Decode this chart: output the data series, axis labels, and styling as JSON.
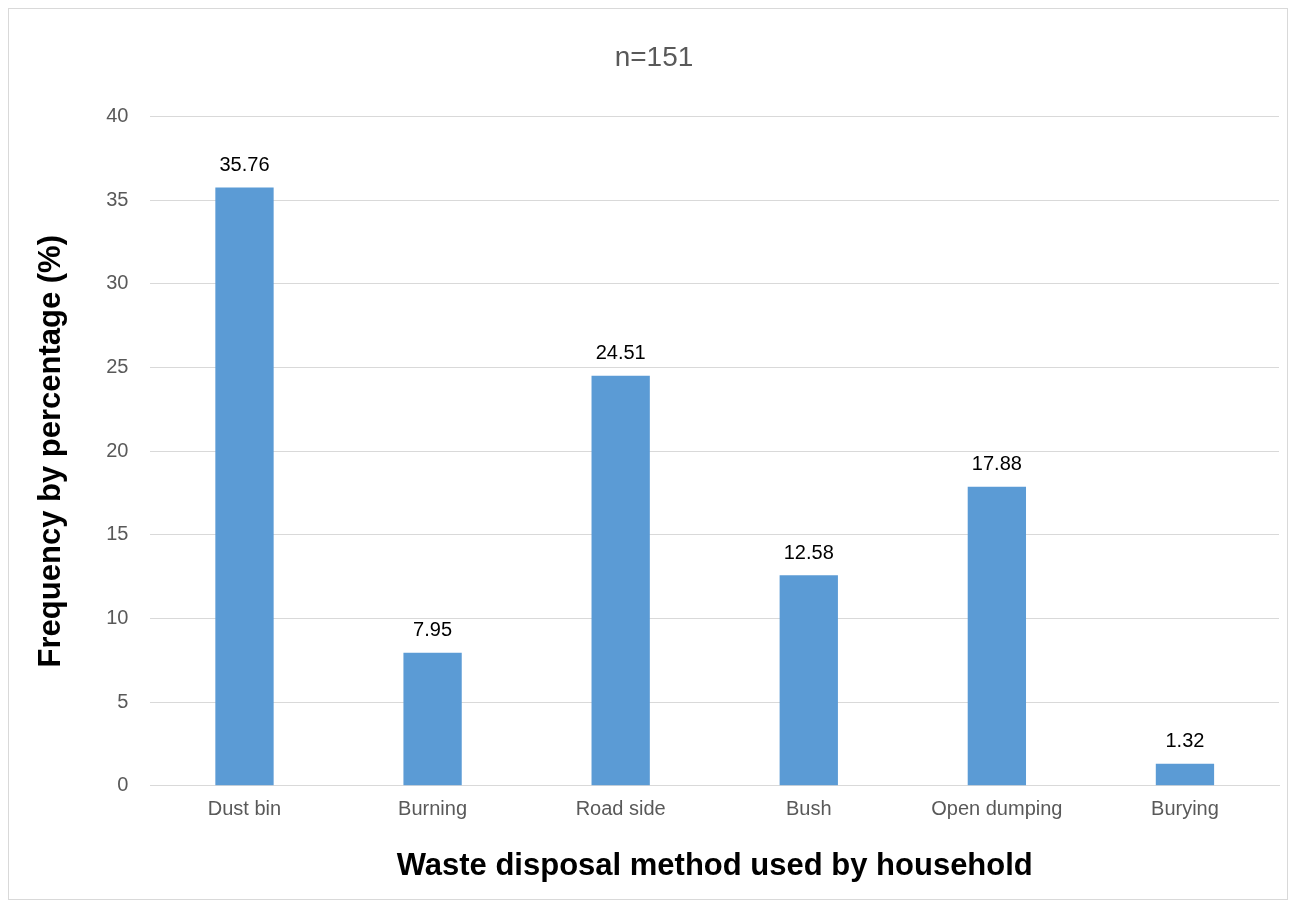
{
  "chart_data": {
    "type": "bar",
    "title": "n=151",
    "xlabel": "Waste disposal method used by household",
    "ylabel": "Frequency by percentage (%)",
    "categories": [
      "Dust bin",
      "Burning",
      "Road side",
      "Bush",
      "Open dumping",
      "Burying"
    ],
    "values": [
      35.76,
      7.95,
      24.51,
      12.58,
      17.88,
      1.32
    ],
    "color": "#5b9bd5",
    "ylim": [
      0,
      40
    ],
    "yticks": [
      0,
      5,
      10,
      15,
      20,
      25,
      30,
      35,
      40
    ],
    "grid": "y",
    "data_labels": true,
    "legend": false
  }
}
